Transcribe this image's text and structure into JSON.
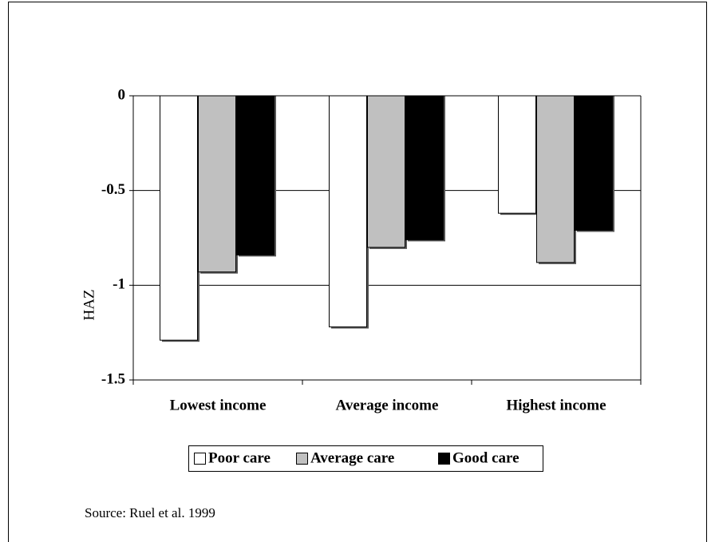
{
  "chart_data": {
    "type": "bar",
    "y_label": "HAZ",
    "categories": [
      "Lowest income",
      "Average income",
      "Highest income"
    ],
    "series": [
      {
        "name": "Poor care",
        "color": "#ffffff",
        "values": [
          -1.29,
          -1.22,
          -0.62
        ]
      },
      {
        "name": "Average care",
        "color": "#c0c0c0",
        "values": [
          -0.93,
          -0.8,
          -0.88
        ]
      },
      {
        "name": "Good care",
        "color": "#000000",
        "values": [
          -0.84,
          -0.76,
          -0.71
        ]
      }
    ],
    "ylim": [
      -1.5,
      0
    ],
    "yticks": [
      0,
      -0.5,
      -1,
      -1.5
    ],
    "grid": true,
    "source": "Source: Ruel et al. 1999"
  }
}
